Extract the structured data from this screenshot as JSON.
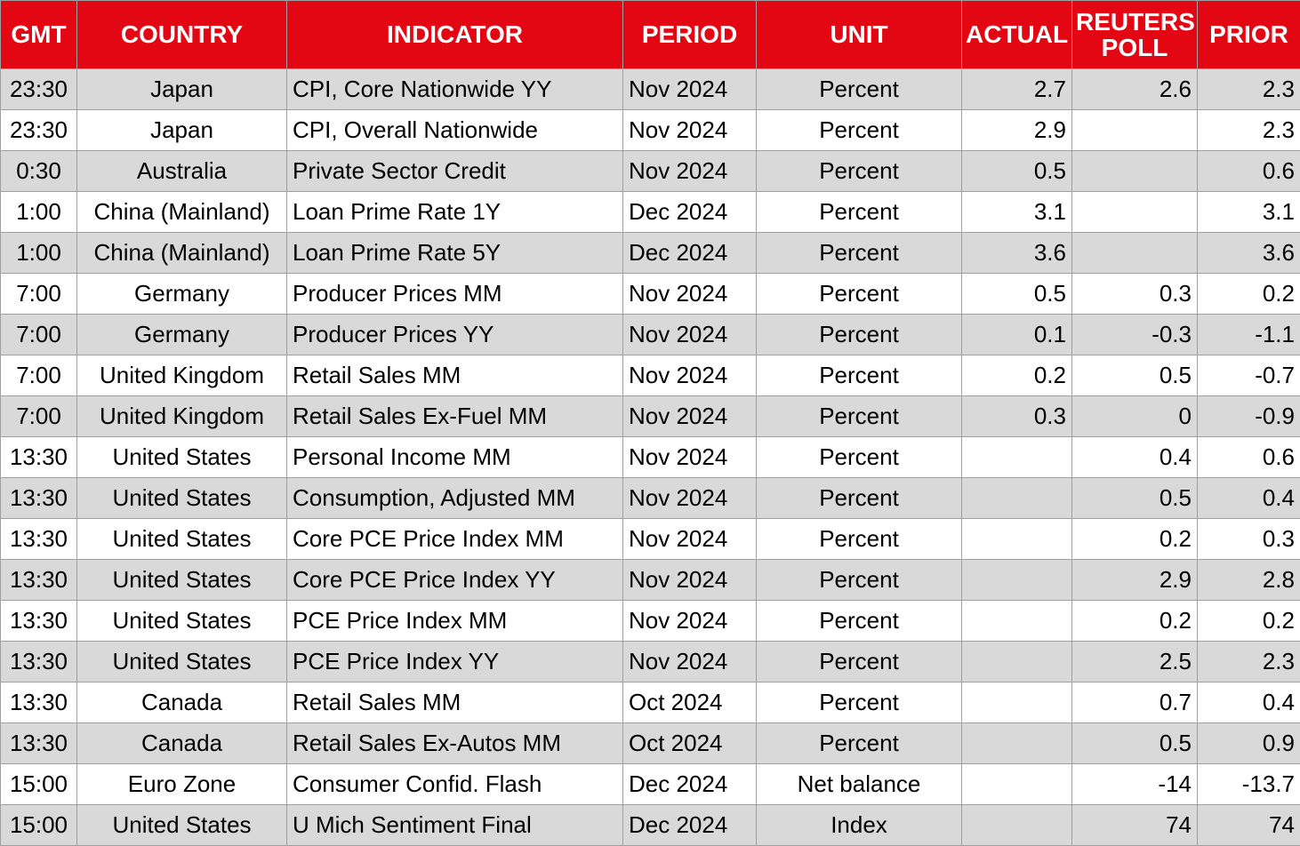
{
  "colors": {
    "header_bg": "#e30613",
    "header_text": "#ffffff",
    "shaded_row": "#d9d9d9",
    "plain_row": "#ffffff",
    "grid_line": "#a0a0a0"
  },
  "headers": {
    "gmt": "GMT",
    "country": "COUNTRY",
    "indicator": "INDICATOR",
    "period": "PERIOD",
    "unit": "UNIT",
    "actual": "ACTUAL",
    "poll": "REUTERS POLL",
    "prior": "PRIOR"
  },
  "rows": [
    {
      "gmt": "23:30",
      "country": "Japan",
      "indicator": "CPI, Core Nationwide YY",
      "period": "Nov 2024",
      "unit": "Percent",
      "actual": "2.7",
      "poll": "2.6",
      "prior": "2.3",
      "shaded": true
    },
    {
      "gmt": "23:30",
      "country": "Japan",
      "indicator": "CPI, Overall Nationwide",
      "period": "Nov 2024",
      "unit": "Percent",
      "actual": "2.9",
      "poll": "",
      "prior": "2.3",
      "shaded": false
    },
    {
      "gmt": "0:30",
      "country": "Australia",
      "indicator": "Private Sector Credit",
      "period": "Nov 2024",
      "unit": "Percent",
      "actual": "0.5",
      "poll": "",
      "prior": "0.6",
      "shaded": true
    },
    {
      "gmt": "1:00",
      "country": "China (Mainland)",
      "indicator": "Loan Prime Rate 1Y",
      "period": "Dec 2024",
      "unit": "Percent",
      "actual": "3.1",
      "poll": "",
      "prior": "3.1",
      "shaded": false
    },
    {
      "gmt": "1:00",
      "country": "China (Mainland)",
      "indicator": "Loan Prime Rate 5Y",
      "period": "Dec 2024",
      "unit": "Percent",
      "actual": "3.6",
      "poll": "",
      "prior": "3.6",
      "shaded": true
    },
    {
      "gmt": "7:00",
      "country": "Germany",
      "indicator": "Producer Prices MM",
      "period": "Nov 2024",
      "unit": "Percent",
      "actual": "0.5",
      "poll": "0.3",
      "prior": "0.2",
      "shaded": false
    },
    {
      "gmt": "7:00",
      "country": "Germany",
      "indicator": "Producer Prices YY",
      "period": "Nov 2024",
      "unit": "Percent",
      "actual": "0.1",
      "poll": "-0.3",
      "prior": "-1.1",
      "shaded": true
    },
    {
      "gmt": "7:00",
      "country": "United Kingdom",
      "indicator": "Retail Sales MM",
      "period": "Nov 2024",
      "unit": "Percent",
      "actual": "0.2",
      "poll": "0.5",
      "prior": "-0.7",
      "shaded": false
    },
    {
      "gmt": "7:00",
      "country": "United Kingdom",
      "indicator": "Retail Sales Ex-Fuel MM",
      "period": "Nov 2024",
      "unit": "Percent",
      "actual": "0.3",
      "poll": "0",
      "prior": "-0.9",
      "shaded": true
    },
    {
      "gmt": "13:30",
      "country": "United States",
      "indicator": "Personal Income MM",
      "period": "Nov 2024",
      "unit": "Percent",
      "actual": "",
      "poll": "0.4",
      "prior": "0.6",
      "shaded": false
    },
    {
      "gmt": "13:30",
      "country": "United States",
      "indicator": "Consumption, Adjusted MM",
      "period": "Nov 2024",
      "unit": "Percent",
      "actual": "",
      "poll": "0.5",
      "prior": "0.4",
      "shaded": true
    },
    {
      "gmt": "13:30",
      "country": "United States",
      "indicator": "Core PCE Price Index MM",
      "period": "Nov 2024",
      "unit": "Percent",
      "actual": "",
      "poll": "0.2",
      "prior": "0.3",
      "shaded": false
    },
    {
      "gmt": "13:30",
      "country": "United States",
      "indicator": "Core PCE Price Index YY",
      "period": "Nov 2024",
      "unit": "Percent",
      "actual": "",
      "poll": "2.9",
      "prior": "2.8",
      "shaded": true
    },
    {
      "gmt": "13:30",
      "country": "United States",
      "indicator": "PCE Price Index MM",
      "period": "Nov 2024",
      "unit": "Percent",
      "actual": "",
      "poll": "0.2",
      "prior": "0.2",
      "shaded": false
    },
    {
      "gmt": "13:30",
      "country": "United States",
      "indicator": "PCE Price Index YY",
      "period": "Nov 2024",
      "unit": "Percent",
      "actual": "",
      "poll": "2.5",
      "prior": "2.3",
      "shaded": true
    },
    {
      "gmt": "13:30",
      "country": "Canada",
      "indicator": "Retail Sales MM",
      "period": "Oct 2024",
      "unit": "Percent",
      "actual": "",
      "poll": "0.7",
      "prior": "0.4",
      "shaded": false
    },
    {
      "gmt": "13:30",
      "country": "Canada",
      "indicator": "Retail Sales Ex-Autos MM",
      "period": "Oct 2024",
      "unit": "Percent",
      "actual": "",
      "poll": "0.5",
      "prior": "0.9",
      "shaded": true
    },
    {
      "gmt": "15:00",
      "country": "Euro Zone",
      "indicator": "Consumer Confid. Flash",
      "period": "Dec 2024",
      "unit": "Net balance",
      "actual": "",
      "poll": "-14",
      "prior": "-13.7",
      "shaded": false
    },
    {
      "gmt": "15:00",
      "country": "United States",
      "indicator": "U Mich Sentiment Final",
      "period": "Dec 2024",
      "unit": "Index",
      "actual": "",
      "poll": "74",
      "prior": "74",
      "shaded": true
    }
  ]
}
